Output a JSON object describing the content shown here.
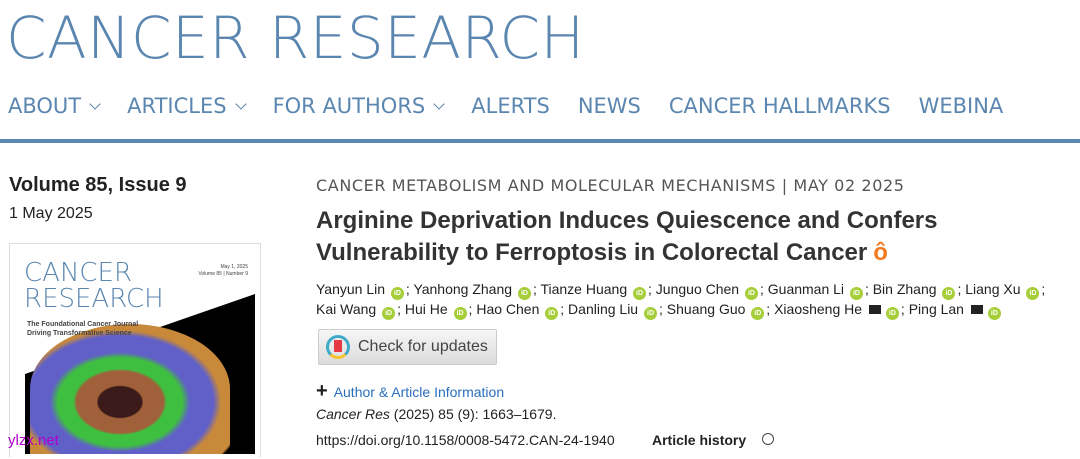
{
  "header": {
    "logo": "CANCER RESEARCH"
  },
  "nav": [
    {
      "label": "ABOUT",
      "dropdown": true
    },
    {
      "label": "ARTICLES",
      "dropdown": true
    },
    {
      "label": "FOR AUTHORS",
      "dropdown": true
    },
    {
      "label": "ALERTS",
      "dropdown": false
    },
    {
      "label": "NEWS",
      "dropdown": false
    },
    {
      "label": "CANCER HALLMARKS",
      "dropdown": false
    },
    {
      "label": "WEBINA",
      "dropdown": false
    }
  ],
  "issue": {
    "volume": "Volume 85, Issue 9",
    "date": "1 May 2025"
  },
  "cover": {
    "title_line1": "CANCER",
    "title_line2": "RESEARCH",
    "subtitle_line1": "The Foundational Cancer Journal",
    "subtitle_line2": "Driving Transformative Science",
    "meta_date": "May 1, 2025",
    "meta_issue": "Volume 85 | Number 9"
  },
  "watermark": "ylzx.net",
  "article": {
    "category": "CANCER METABOLISM AND MOLECULAR MECHANISMS |  MAY 02 2025",
    "title_line1": "Arginine Deprivation Induces Quiescence and Confers",
    "title_line2": "Vulnerability to Ferroptosis in Colorectal Cancer",
    "authors": [
      {
        "name": "Yanyun Lin",
        "email": false
      },
      {
        "name": "Yanhong Zhang",
        "email": false
      },
      {
        "name": "Tianze Huang",
        "email": false
      },
      {
        "name": "Junguo Chen",
        "email": false
      },
      {
        "name": "Guanman Li",
        "email": false
      },
      {
        "name": "Bin Zhang",
        "email": false
      },
      {
        "name": "Liang Xu",
        "email": false
      },
      {
        "name": "Kai Wang",
        "email": false
      },
      {
        "name": "Hui He",
        "email": false
      },
      {
        "name": "Hao Chen",
        "email": false
      },
      {
        "name": "Danling Liu",
        "email": false
      },
      {
        "name": "Shuang Guo",
        "email": false
      },
      {
        "name": "Xiaosheng He",
        "email": true
      },
      {
        "name": "Ping Lan",
        "email": true
      }
    ],
    "check_updates": "Check for updates",
    "author_info": "Author & Article Information",
    "citation_journal": "Cancer Res",
    "citation_rest": " (2025) 85 (9): 1663–1679.",
    "doi": "https://doi.org/10.1158/0008-5472.CAN-24-1940",
    "history": "Article history"
  },
  "colors": {
    "brand": "#5a86b0",
    "link": "#2a6ebb",
    "orcid": "#a6ce39",
    "open_access": "#f47a20"
  }
}
